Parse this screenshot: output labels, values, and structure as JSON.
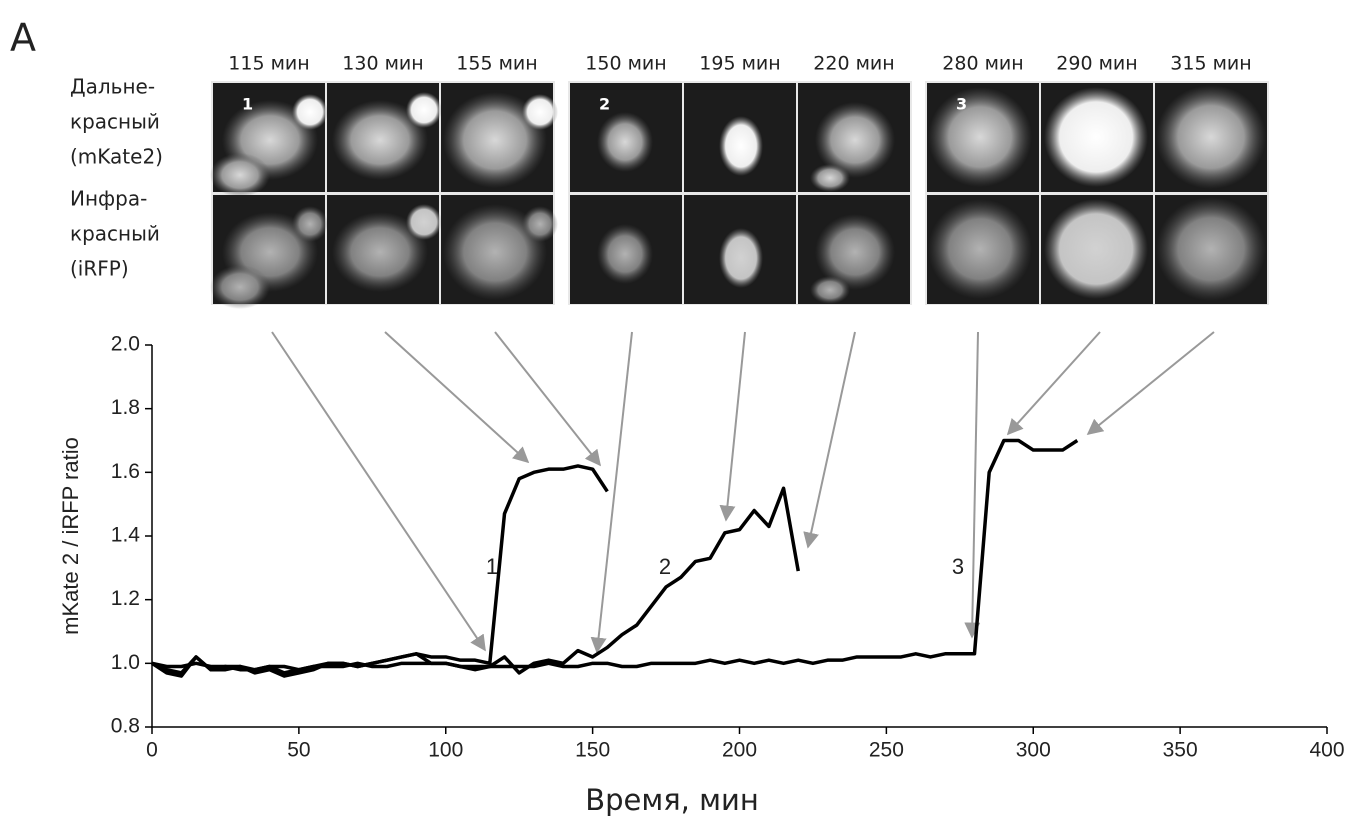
{
  "panel_label": "A",
  "images": {
    "time_labels": [
      "115 мин",
      "130 мин",
      "155 мин",
      "150 мин",
      "195 мин",
      "220 мин",
      "280 мин",
      "290 мин",
      "315 мин"
    ],
    "row_labels": [
      [
        "Дальне-",
        "красный",
        "(mKate2)"
      ],
      [
        "Инфра-",
        "красный",
        "(iRFP)"
      ]
    ],
    "cell_numbers": [
      "1",
      "2",
      "3"
    ]
  },
  "chart_data": {
    "type": "line",
    "xlabel": "Время, мин",
    "ylabel": "mKate 2 / iRFP ratio",
    "x": [
      0,
      5,
      10,
      15,
      20,
      25,
      30,
      35,
      40,
      45,
      50,
      55,
      60,
      65,
      70,
      75,
      80,
      85,
      90,
      95,
      100,
      105,
      110,
      115,
      120,
      125,
      130,
      135,
      140,
      145,
      150,
      155,
      160,
      165,
      170,
      175,
      180,
      185,
      190,
      195,
      200,
      205,
      210,
      215,
      220,
      225,
      230,
      235,
      240,
      245,
      250,
      255,
      260,
      265,
      270,
      275,
      280,
      285,
      290,
      295,
      300,
      305,
      310,
      315
    ],
    "series": [
      {
        "name": "1",
        "color": "#000000",
        "values": [
          1.0,
          0.98,
          0.97,
          1.02,
          0.98,
          0.99,
          0.99,
          0.98,
          0.99,
          0.97,
          0.98,
          0.99,
          1.0,
          1.0,
          0.99,
          1.0,
          1.01,
          1.02,
          1.03,
          1.02,
          1.02,
          1.01,
          1.01,
          1.0,
          1.47,
          1.58,
          1.6,
          1.61,
          1.61,
          1.62,
          1.61,
          1.54,
          null,
          null,
          null,
          null,
          null,
          null,
          null,
          null,
          null,
          null,
          null,
          null,
          null,
          null,
          null,
          null,
          null,
          null,
          null,
          null,
          null,
          null,
          null,
          null,
          null,
          null,
          null,
          null,
          null,
          null,
          null,
          null
        ]
      },
      {
        "name": "2",
        "color": "#000000",
        "values": [
          1.0,
          0.97,
          0.96,
          1.02,
          0.98,
          0.98,
          0.99,
          0.97,
          0.98,
          0.96,
          0.97,
          0.98,
          1.0,
          1.0,
          0.99,
          1.0,
          1.01,
          1.02,
          1.03,
          1.0,
          1.0,
          0.99,
          0.98,
          0.99,
          1.02,
          0.97,
          1.0,
          1.01,
          1.0,
          1.04,
          1.02,
          1.05,
          1.09,
          1.12,
          1.18,
          1.24,
          1.27,
          1.32,
          1.33,
          1.41,
          1.42,
          1.48,
          1.43,
          1.55,
          1.29,
          null,
          null,
          null,
          null,
          null,
          null,
          null,
          null,
          null,
          null,
          null,
          null,
          null,
          null,
          null,
          null,
          null,
          null,
          null
        ]
      },
      {
        "name": "3",
        "color": "#000000",
        "values": [
          1.0,
          0.99,
          0.99,
          1.0,
          0.99,
          0.99,
          0.98,
          0.98,
          0.99,
          0.99,
          0.98,
          0.99,
          0.99,
          0.99,
          1.0,
          0.99,
          0.99,
          1.0,
          1.0,
          1.0,
          1.0,
          0.99,
          0.99,
          0.99,
          0.99,
          0.99,
          0.99,
          1.0,
          0.99,
          0.99,
          1.0,
          1.0,
          0.99,
          0.99,
          1.0,
          1.0,
          1.0,
          1.0,
          1.01,
          1.0,
          1.01,
          1.0,
          1.01,
          1.0,
          1.01,
          1.0,
          1.01,
          1.01,
          1.02,
          1.02,
          1.02,
          1.02,
          1.03,
          1.02,
          1.03,
          1.03,
          1.03,
          1.6,
          1.7,
          1.7,
          1.67,
          1.67,
          1.67,
          1.7
        ]
      }
    ],
    "xlim": [
      0,
      400
    ],
    "xticks": [
      0,
      50,
      100,
      150,
      200,
      250,
      300,
      350,
      400
    ],
    "ylim": [
      0.8,
      2.0
    ],
    "yticks": [
      0.8,
      {
        "value": 1,
        "label": "1.0"
      },
      1.2,
      1.4,
      1.6,
      1.8,
      {
        "value": 2,
        "label": "2.0"
      }
    ]
  }
}
